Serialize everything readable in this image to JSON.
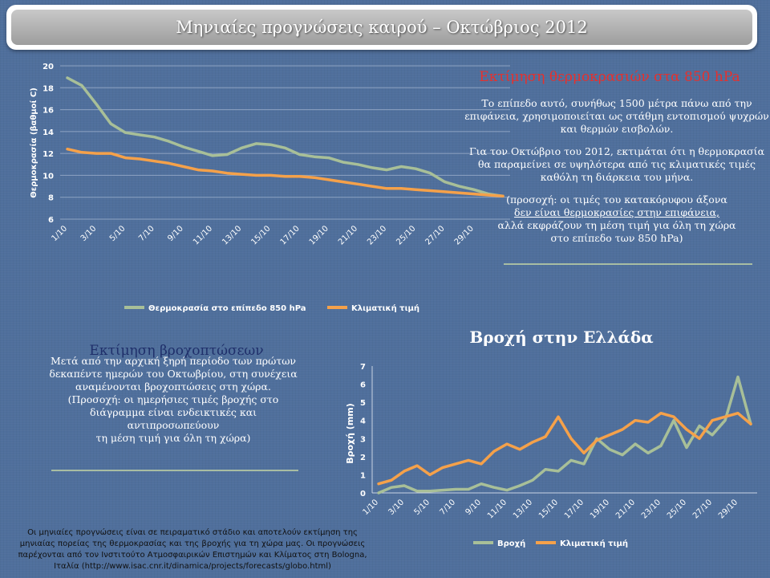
{
  "title": "Μηνιαίες προγνώσεις καιρού – Οκτώβριος 2012",
  "temperature_panel": {
    "heading": "Εκτίμηση θερμοκρασιών στα 850 hPa",
    "paragraph_1": "Το επίπεδο αυτό, συνήθως 1500 μέτρα πάνω από την επιφάνεια, χρησιμοποιείται ως στάθμη εντοπισμού ψυχρών και θερμών εισβολών.",
    "paragraph_2": "Για τον Οκτώβριο του 2012, εκτιμάται ότι η θερμοκρασία θα παραμείνει σε υψηλότερα από τις κλιματικές τιμές καθόλη τη διάρκεια του μήνα.",
    "note_line_1": "(προσοχή: οι τιμές του κατακόρυφου άξονα",
    "note_line_2": "δεν είναι θερμοκρασίες στην επιφάνεια,",
    "note_line_3": "αλλά εκφράζουν τη μέση τιμή για όλη τη χώρα",
    "note_line_4": "στο επίπεδο των 850 hPa)"
  },
  "rain_panel": {
    "heading": "Εκτίμηση βροχοπτώσεων",
    "line_1": "Μετά από την αρχική ξηρή περίοδο των πρώτων",
    "line_2": "δεκαπέντε ημερών του Οκτωβρίου, στη συνέχεια",
    "line_3": "αναμένονται βροχοπτώσεις στη χώρα.",
    "line_4": "(Προσοχή: οι ημερήσιες τιμές βροχής στο",
    "line_5": "διάγραμμα είναι ενδεικτικές και",
    "line_6": "αντιπροσωπεύουν",
    "line_7": "τη μέση τιμή για όλη τη χώρα)"
  },
  "footer": {
    "line_1": "Οι μηνιαίες προγνώσεις είναι σε πειραματικό στάδιο και αποτελούν εκτίμηση της",
    "line_2": "μηνιαίας πορείας της θερμοκρασίας και της βροχής για τη χώρα μας. Οι προγνώσεις",
    "line_3": "παρέχονται από τον Ινστιτούτο Ατμοσφαιρικών Επιστημών και Κλίματος στη Bologna,",
    "line_4": "Ιταλία (http://www.isac.cnr.it/dinamica/projects/forecasts/globo.html)"
  },
  "colors": {
    "background": "#4f6f9c",
    "series_forecast": "#a8bf98",
    "series_climate": "#f5a14a",
    "temp_heading": "#e8302c",
    "rain_heading": "#1f2f6a"
  },
  "chart_data": [
    {
      "type": "line",
      "title": "",
      "xlabel": "",
      "ylabel": "Θερμοκρασία (βαθμοί C)",
      "ylim": [
        6,
        20
      ],
      "yticks": [
        6,
        8,
        10,
        12,
        14,
        16,
        18,
        20
      ],
      "categories": [
        "1/10",
        "2/10",
        "3/10",
        "4/10",
        "5/10",
        "6/10",
        "7/10",
        "8/10",
        "9/10",
        "10/10",
        "11/10",
        "12/10",
        "13/10",
        "14/10",
        "15/10",
        "16/10",
        "17/10",
        "18/10",
        "19/10",
        "20/10",
        "21/10",
        "22/10",
        "23/10",
        "24/10",
        "25/10",
        "26/10",
        "27/10",
        "28/10",
        "29/10",
        "30/10",
        "31/10"
      ],
      "tick_labels": [
        "1/10",
        "3/10",
        "5/10",
        "7/10",
        "9/10",
        "11/10",
        "13/10",
        "15/10",
        "17/10",
        "19/10",
        "21/10",
        "23/10",
        "25/10",
        "27/10",
        "29/10"
      ],
      "grid": true,
      "legend": "bottom",
      "series": [
        {
          "name": "Θερμοκρασία στο επίπεδο 850 hPa",
          "values": [
            18.9,
            18.2,
            16.5,
            14.7,
            13.9,
            13.7,
            13.5,
            13.1,
            12.6,
            12.2,
            11.8,
            11.9,
            12.5,
            12.9,
            12.8,
            12.5,
            11.9,
            11.7,
            11.6,
            11.2,
            11.0,
            10.7,
            10.5,
            10.8,
            10.6,
            10.2,
            9.4,
            9.0,
            8.7,
            8.3,
            8.1
          ]
        },
        {
          "name": "Κλιματική τιμή",
          "values": [
            12.4,
            12.1,
            12.0,
            12.0,
            11.6,
            11.5,
            11.3,
            11.1,
            10.8,
            10.5,
            10.4,
            10.2,
            10.1,
            10.0,
            10.0,
            9.9,
            9.9,
            9.8,
            9.6,
            9.4,
            9.2,
            9.0,
            8.8,
            8.8,
            8.7,
            8.6,
            8.5,
            8.4,
            8.3,
            8.2,
            8.1
          ]
        }
      ]
    },
    {
      "type": "line",
      "title": "Βροχή στην Ελλάδα",
      "xlabel": "",
      "ylabel": "Βροχή (mm)",
      "ylim": [
        0,
        7
      ],
      "yticks": [
        0,
        1,
        2,
        3,
        4,
        5,
        6,
        7
      ],
      "categories": [
        "1/10",
        "2/10",
        "3/10",
        "4/10",
        "5/10",
        "6/10",
        "7/10",
        "8/10",
        "9/10",
        "10/10",
        "11/10",
        "12/10",
        "13/10",
        "14/10",
        "15/10",
        "16/10",
        "17/10",
        "18/10",
        "19/10",
        "20/10",
        "21/10",
        "22/10",
        "23/10",
        "24/10",
        "25/10",
        "26/10",
        "27/10",
        "28/10",
        "29/10",
        "30/10"
      ],
      "tick_labels": [
        "1/10",
        "3/10",
        "5/10",
        "7/10",
        "9/10",
        "11/10",
        "13/10",
        "15/10",
        "17/10",
        "19/10",
        "21/10",
        "23/10",
        "25/10",
        "27/10",
        "29/10"
      ],
      "grid": false,
      "legend": "bottom",
      "series": [
        {
          "name": "Βροχή",
          "values": [
            0.0,
            0.3,
            0.4,
            0.1,
            0.1,
            0.15,
            0.2,
            0.2,
            0.5,
            0.3,
            0.15,
            0.4,
            0.7,
            1.3,
            1.2,
            1.8,
            1.6,
            3.0,
            2.4,
            2.1,
            2.7,
            2.2,
            2.6,
            4.0,
            2.5,
            3.7,
            3.2,
            4.0,
            6.4,
            3.8
          ]
        },
        {
          "name": "Κλιματική τιμή",
          "values": [
            0.5,
            0.7,
            1.2,
            1.5,
            1.0,
            1.4,
            1.6,
            1.8,
            1.6,
            2.3,
            2.7,
            2.4,
            2.8,
            3.1,
            4.2,
            3.0,
            2.2,
            2.9,
            3.2,
            3.5,
            4.0,
            3.9,
            4.4,
            4.2,
            3.5,
            3.0,
            4.0,
            4.2,
            4.4,
            3.8
          ]
        }
      ]
    }
  ]
}
